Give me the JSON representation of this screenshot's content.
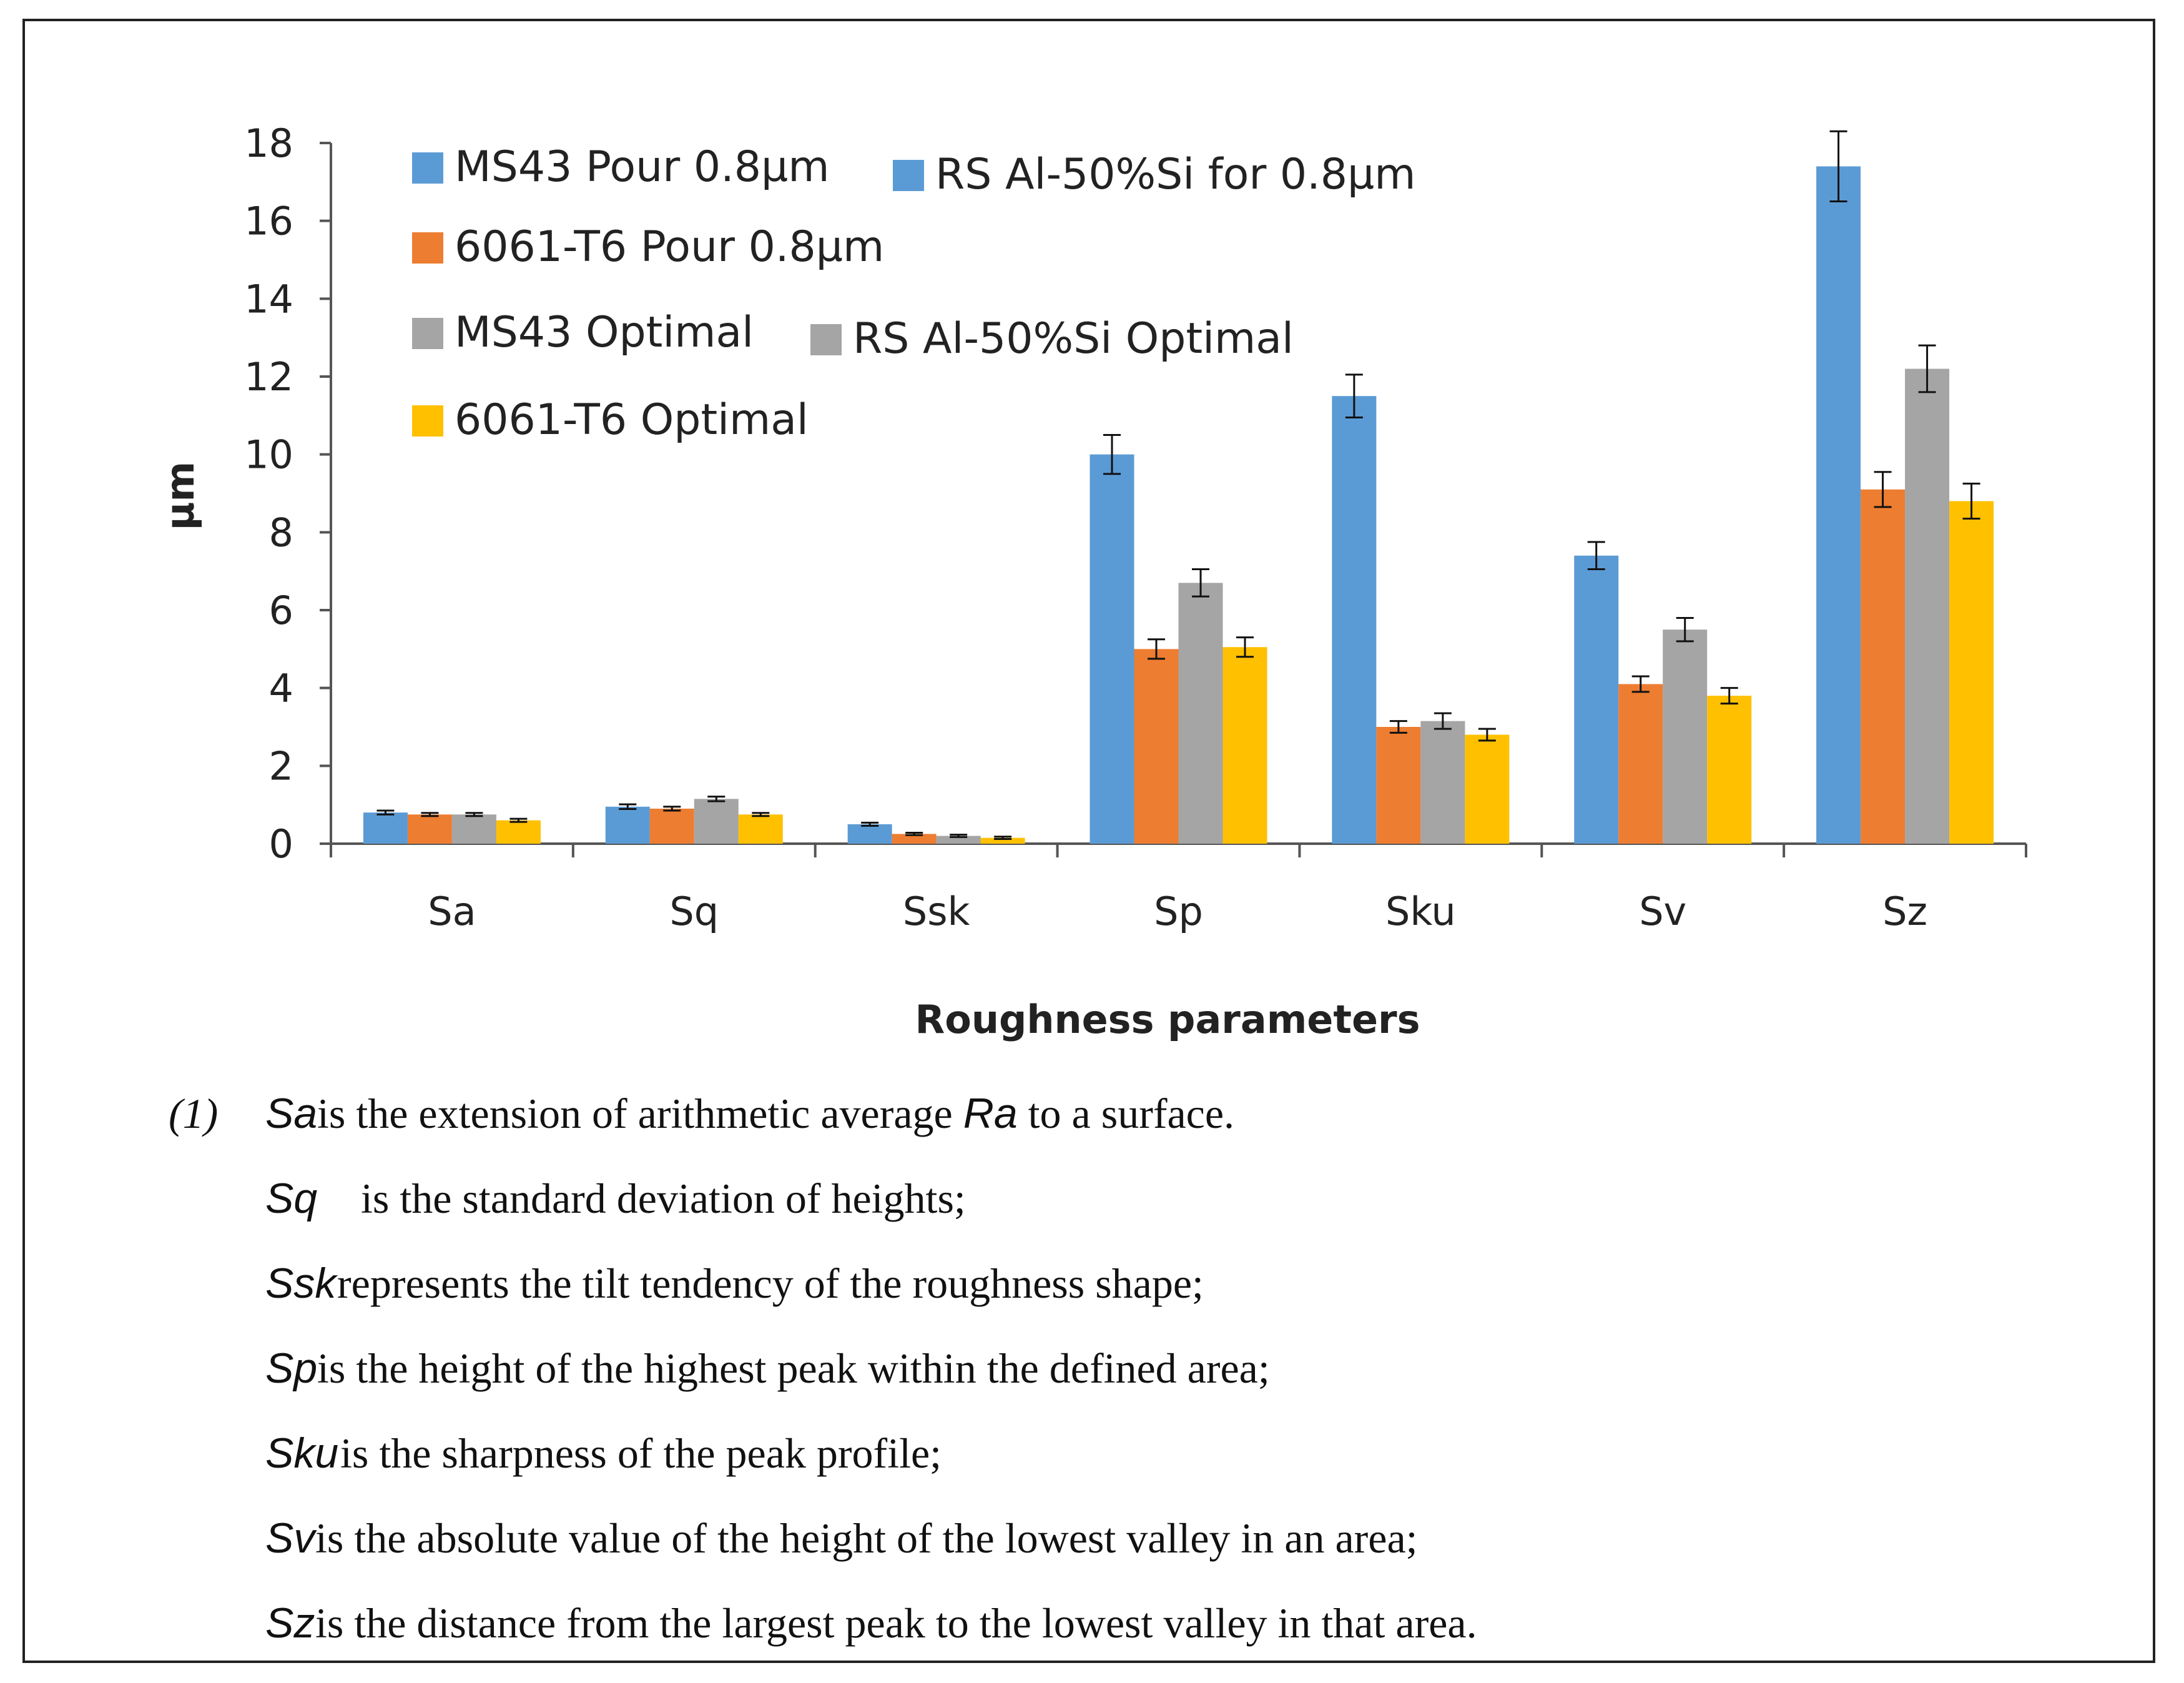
{
  "chart_data": {
    "type": "bar",
    "title": "",
    "xlabel": "Roughness parameters",
    "ylabel": "µm",
    "ylim": [
      0,
      18
    ],
    "yticks": [
      0,
      2,
      4,
      6,
      8,
      10,
      12,
      14,
      16,
      18
    ],
    "categories": [
      "Sa",
      "Sq",
      "Ssk",
      "Sp",
      "Sku",
      "Sv",
      "Sz"
    ],
    "series": [
      {
        "name": "MS43 Pour 0.8µm",
        "color": "#5b9bd5",
        "values": [
          0.8,
          0.95,
          0.5,
          10.0,
          11.5,
          7.4,
          17.4
        ],
        "errors": [
          0.05,
          0.06,
          0.04,
          0.5,
          0.55,
          0.35,
          0.9
        ]
      },
      {
        "name": "6061-T6 Pour 0.8µm",
        "color": "#ed7d31",
        "values": [
          0.75,
          0.9,
          0.25,
          5.0,
          3.0,
          4.1,
          9.1
        ],
        "errors": [
          0.04,
          0.05,
          0.03,
          0.25,
          0.15,
          0.2,
          0.45
        ]
      },
      {
        "name": "MS43 Optimal",
        "color": "#a5a5a5",
        "values": [
          0.75,
          1.15,
          0.2,
          6.7,
          3.15,
          5.5,
          12.2
        ],
        "errors": [
          0.04,
          0.06,
          0.03,
          0.35,
          0.2,
          0.3,
          0.6
        ]
      },
      {
        "name": "6061-T6 Optimal",
        "color": "#ffc000",
        "values": [
          0.6,
          0.75,
          0.15,
          5.05,
          2.8,
          3.8,
          8.8
        ],
        "errors": [
          0.04,
          0.04,
          0.03,
          0.25,
          0.15,
          0.2,
          0.45
        ]
      }
    ],
    "extra_legend": [
      {
        "name": "RS Al-50%Si for 0.8µm",
        "color": "#5b9bd5"
      },
      {
        "name": "RS Al-50%Si Optimal",
        "color": "#a5a5a5"
      }
    ],
    "legend_position": "top-left"
  },
  "notes": {
    "number": "(1)",
    "items": [
      {
        "symbol": "Sa",
        "pre": " is the extension of arithmetic average ",
        "ref": "Ra",
        "post": " to a surface."
      },
      {
        "symbol": "Sq",
        "text": "is the standard deviation of heights;"
      },
      {
        "symbol": "Ssk",
        "text": " represents the tilt tendency of the roughness shape;"
      },
      {
        "symbol": "Sp",
        "text": " is the height of the highest peak within the defined area;"
      },
      {
        "symbol": "Sku",
        "text": " is the sharpness of the peak profile;"
      },
      {
        "symbol": "Sv",
        "text": " is the absolute value of the height of the lowest valley in an area;"
      },
      {
        "symbol": "Sz",
        "text": " is the distance from the largest peak to the lowest valley in that area."
      }
    ]
  }
}
